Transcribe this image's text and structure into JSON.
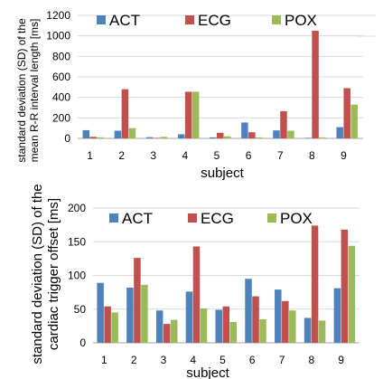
{
  "colors": {
    "ACT": "#4f81bd",
    "ECG": "#c0504d",
    "POX": "#9bbb59",
    "grid": "#d9d9d9",
    "axis": "#a6a6a6"
  },
  "chart_data": [
    {
      "type": "bar",
      "categories": [
        "1",
        "2",
        "3",
        "4",
        "5",
        "6",
        "7",
        "8",
        "9"
      ],
      "series": [
        {
          "name": "ACT",
          "values": [
            80,
            75,
            12,
            40,
            10,
            155,
            78,
            5,
            110
          ]
        },
        {
          "name": "ECG",
          "values": [
            15,
            480,
            5,
            455,
            55,
            60,
            265,
            1050,
            490
          ]
        },
        {
          "name": "POX",
          "values": [
            10,
            100,
            15,
            455,
            20,
            10,
            75,
            10,
            330
          ]
        }
      ],
      "xlabel": "subject",
      "ylabel": [
        "standard deviation (SD) of the",
        "mean R-R interval length [ms]"
      ],
      "ylim": [
        0,
        1200
      ],
      "yticks": [
        "0",
        "200",
        "400",
        "600",
        "800",
        "1000",
        "1200"
      ],
      "grid": true,
      "legend_position": "top"
    },
    {
      "type": "bar",
      "categories": [
        "1",
        "2",
        "3",
        "4",
        "5",
        "6",
        "7",
        "8",
        "9"
      ],
      "series": [
        {
          "name": "ACT",
          "values": [
            89,
            82,
            48,
            76,
            49,
            95,
            79,
            37,
            81
          ]
        },
        {
          "name": "ECG",
          "values": [
            54,
            126,
            28,
            143,
            54,
            69,
            62,
            174,
            168
          ]
        },
        {
          "name": "POX",
          "values": [
            45,
            86,
            34,
            51,
            31,
            35,
            48,
            33,
            144
          ]
        }
      ],
      "xlabel": "subject",
      "ylabel": [
        "standard deviation (SD) of the",
        "cardiac trigger offset [ms]"
      ],
      "ylim": [
        0,
        200
      ],
      "yticks": [
        "0",
        "50",
        "100",
        "150",
        "200"
      ],
      "grid": true,
      "legend_position": "top"
    }
  ]
}
